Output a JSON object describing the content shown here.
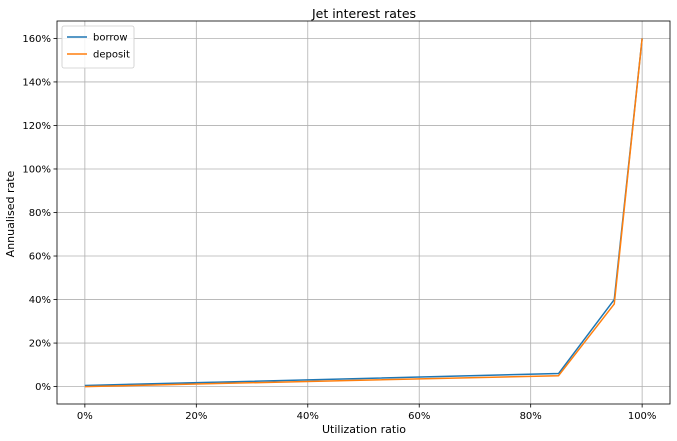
{
  "chart_data": {
    "type": "line",
    "title": "Jet interest rates",
    "xlabel": "Utilization ratio",
    "ylabel": "Annualised rate",
    "x": [
      0,
      0.85,
      0.95,
      1.0
    ],
    "xlim": [
      -0.05,
      1.05
    ],
    "ylim": [
      -0.08,
      1.68
    ],
    "x_ticks": [
      0,
      0.2,
      0.4,
      0.6,
      0.8,
      1.0
    ],
    "x_tick_labels": [
      "0%",
      "20%",
      "40%",
      "60%",
      "80%",
      "100%"
    ],
    "y_ticks": [
      0,
      0.2,
      0.4,
      0.6,
      0.8,
      1.0,
      1.2,
      1.4,
      1.6
    ],
    "y_tick_labels": [
      "0%",
      "20%",
      "40%",
      "60%",
      "80%",
      "100%",
      "120%",
      "140%",
      "160%"
    ],
    "grid": true,
    "legend_position": "top-left",
    "series": [
      {
        "name": "borrow",
        "color": "#1f77b4",
        "values": [
          0.005,
          0.06,
          0.4,
          1.6
        ]
      },
      {
        "name": "deposit",
        "color": "#ff7f0e",
        "values": [
          0.0,
          0.05,
          0.38,
          1.6
        ]
      }
    ]
  }
}
